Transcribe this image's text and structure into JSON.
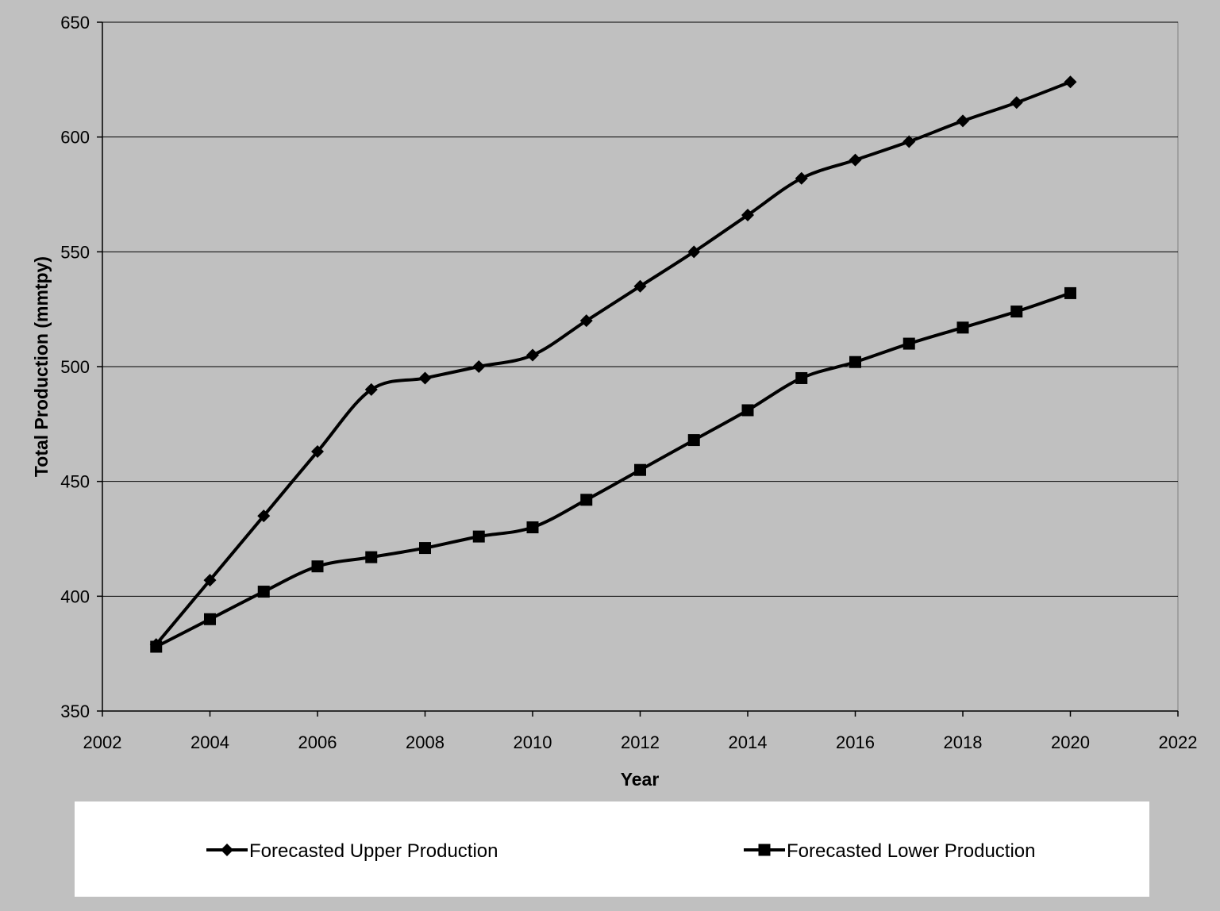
{
  "chart_data": {
    "type": "line",
    "title": "",
    "xlabel": "Year",
    "ylabel": "Total Production (mmtpy)",
    "xlim": [
      2002,
      2022
    ],
    "ylim": [
      350,
      650
    ],
    "xticks": [
      2002,
      2004,
      2006,
      2008,
      2010,
      2012,
      2014,
      2016,
      2018,
      2020,
      2022
    ],
    "yticks": [
      350,
      400,
      450,
      500,
      550,
      600,
      650
    ],
    "grid": "horizontal",
    "legend_position": "bottom",
    "series": [
      {
        "name": "Forecasted Upper Production",
        "marker": "diamond",
        "color": "#000000",
        "x": [
          2003,
          2004,
          2005,
          2006,
          2007,
          2008,
          2009,
          2010,
          2011,
          2012,
          2013,
          2014,
          2015,
          2016,
          2017,
          2018,
          2019,
          2020
        ],
        "values": [
          379,
          407,
          435,
          463,
          490,
          495,
          500,
          505,
          520,
          535,
          550,
          566,
          582,
          590,
          598,
          607,
          615,
          624
        ]
      },
      {
        "name": "Forecasted Lower Production",
        "marker": "square",
        "color": "#000000",
        "x": [
          2003,
          2004,
          2005,
          2006,
          2007,
          2008,
          2009,
          2010,
          2011,
          2012,
          2013,
          2014,
          2015,
          2016,
          2017,
          2018,
          2019,
          2020
        ],
        "values": [
          378,
          390,
          402,
          413,
          417,
          421,
          426,
          430,
          442,
          455,
          468,
          481,
          495,
          502,
          510,
          517,
          524,
          532
        ]
      }
    ]
  }
}
